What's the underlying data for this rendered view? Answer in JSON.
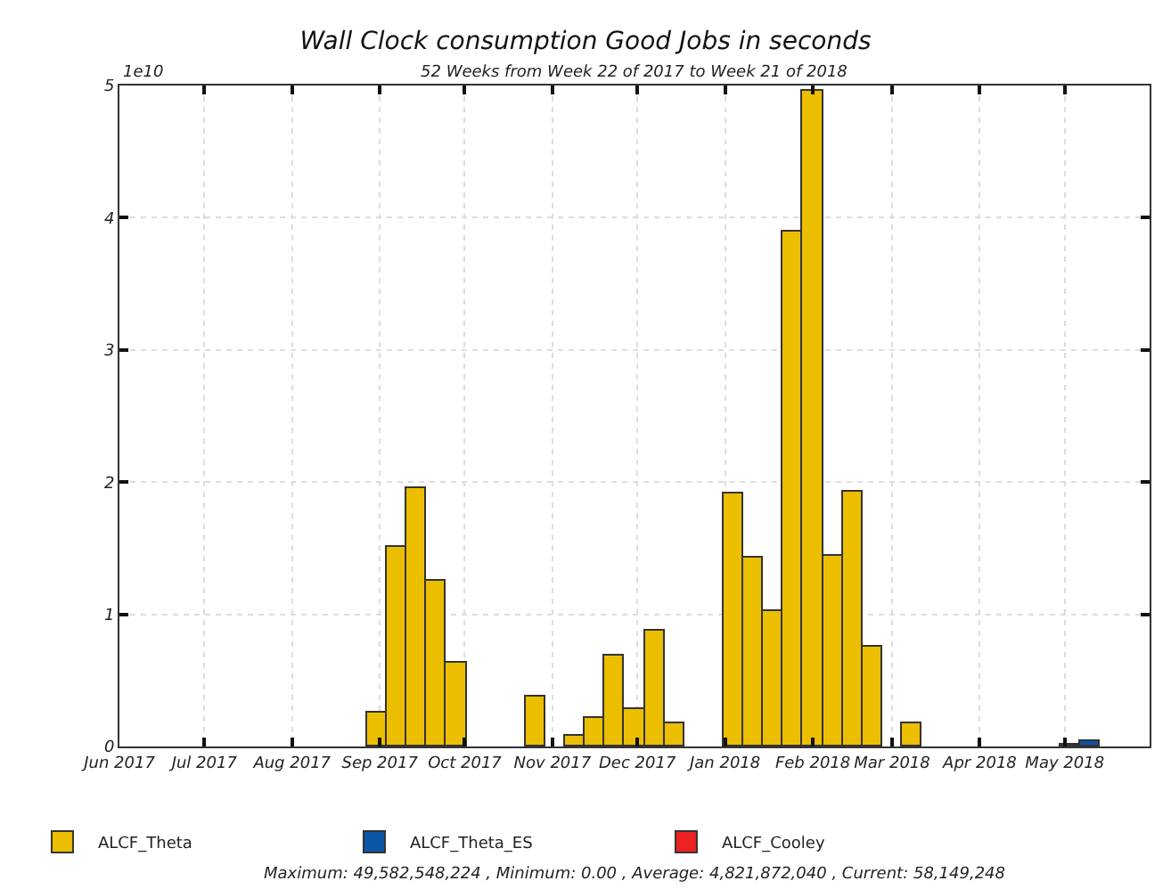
{
  "chart_data": {
    "type": "bar",
    "title": "Wall Clock consumption Good Jobs in seconds",
    "subtitle": "52 Weeks from Week 22 of 2017 to Week 21 of 2018",
    "x": [
      "2017-08-31",
      "2017-09-07",
      "2017-09-14",
      "2017-09-21",
      "2017-09-28",
      "2017-10-05",
      "2017-10-12",
      "2017-10-19",
      "2017-10-26",
      "2017-11-02",
      "2017-11-09",
      "2017-11-16",
      "2017-11-23",
      "2017-11-30",
      "2017-12-07",
      "2017-12-14",
      "2017-12-21",
      "2017-12-28",
      "2018-01-04",
      "2018-01-11",
      "2018-01-18",
      "2018-01-25",
      "2018-02-01",
      "2018-02-08",
      "2018-02-15",
      "2018-02-22",
      "2018-03-01",
      "2018-03-08",
      "2018-03-15",
      "2018-03-22",
      "2018-03-29",
      "2018-04-05",
      "2018-04-12",
      "2018-04-19",
      "2018-04-26",
      "2018-05-03",
      "2018-05-10"
    ],
    "series": [
      {
        "name": "ALCF_Theta",
        "color": "#ecbe00",
        "values": [
          0.26,
          1.51,
          1.95,
          1.26,
          0.64,
          null,
          null,
          null,
          0.38,
          null,
          0.08,
          0.22,
          0.69,
          0.28,
          0.87,
          0.17,
          null,
          null,
          1.91,
          1.43,
          1.02,
          3.9,
          4.96,
          1.44,
          1.93,
          0.75,
          null,
          0.17,
          null,
          null,
          null,
          null,
          null,
          null,
          null,
          null,
          null
        ]
      },
      {
        "name": "ALCF_Theta_ES",
        "color": "#0a55a5",
        "values": [
          null,
          null,
          null,
          null,
          null,
          null,
          null,
          null,
          null,
          null,
          null,
          null,
          null,
          null,
          null,
          null,
          null,
          null,
          null,
          null,
          null,
          null,
          null,
          null,
          null,
          null,
          null,
          null,
          null,
          null,
          null,
          null,
          null,
          null,
          null,
          0.01,
          0.04
        ]
      },
      {
        "name": "ALCF_Cooley",
        "color": "#ee2222",
        "values": [
          null,
          null,
          null,
          null,
          null,
          null,
          null,
          null,
          null,
          null,
          null,
          null,
          null,
          null,
          null,
          null,
          null,
          null,
          null,
          null,
          null,
          null,
          null,
          null,
          null,
          null,
          null,
          null,
          null,
          null,
          null,
          null,
          null,
          null,
          null,
          null,
          null
        ]
      }
    ],
    "stacked": true,
    "xlim": [
      "2017-06-01",
      "2018-05-31"
    ],
    "xticks": [
      {
        "value": "2017-06-01",
        "label": "Jun 2017"
      },
      {
        "value": "2017-07-01",
        "label": "Jul 2017"
      },
      {
        "value": "2017-08-01",
        "label": "Aug 2017"
      },
      {
        "value": "2017-09-01",
        "label": "Sep 2017"
      },
      {
        "value": "2017-10-01",
        "label": "Oct 2017"
      },
      {
        "value": "2017-11-01",
        "label": "Nov 2017"
      },
      {
        "value": "2017-12-01",
        "label": "Dec 2017"
      },
      {
        "value": "2018-01-01",
        "label": "Jan 2018"
      },
      {
        "value": "2018-02-01",
        "label": "Feb 2018"
      },
      {
        "value": "2018-03-01",
        "label": "Mar 2018"
      },
      {
        "value": "2018-04-01",
        "label": "Apr 2018"
      },
      {
        "value": "2018-05-01",
        "label": "May 2018"
      }
    ],
    "ylim": [
      0,
      5
    ],
    "yticks": [
      0,
      1,
      2,
      3,
      4,
      5
    ],
    "annotations": [
      "1e10",
      "Maximum: 49,582,548,224 , Minimum: 0.00 , Average: 4,821,872,040 , Current: 58,149,248"
    ],
    "grid": true,
    "legend": "bottom"
  }
}
